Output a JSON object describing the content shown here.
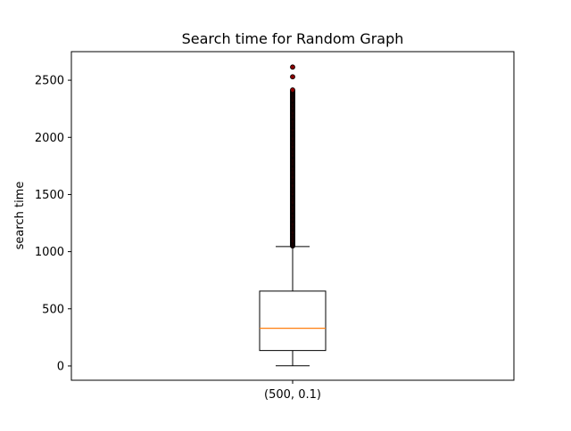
{
  "chart_data": {
    "type": "box",
    "title": "Search time for Random Graph",
    "xlabel": "",
    "ylabel": "search time",
    "categories": [
      "(500, 0.1)"
    ],
    "ylim": [
      -125,
      2750
    ],
    "yticks": [
      0,
      500,
      1000,
      1500,
      2000,
      2500
    ],
    "box": {
      "whisker_low": 2,
      "q1": 135,
      "median": 330,
      "q3": 655,
      "whisker_high": 1045
    },
    "outliers": {
      "range": [
        1045,
        2420
      ],
      "max_points": [
        2530,
        2615
      ]
    },
    "grid": false,
    "colors": {
      "box": "#000000",
      "median": "#ff7f0e",
      "outlier_fill": "#8b0000",
      "outlier_edge": "#000000"
    }
  }
}
